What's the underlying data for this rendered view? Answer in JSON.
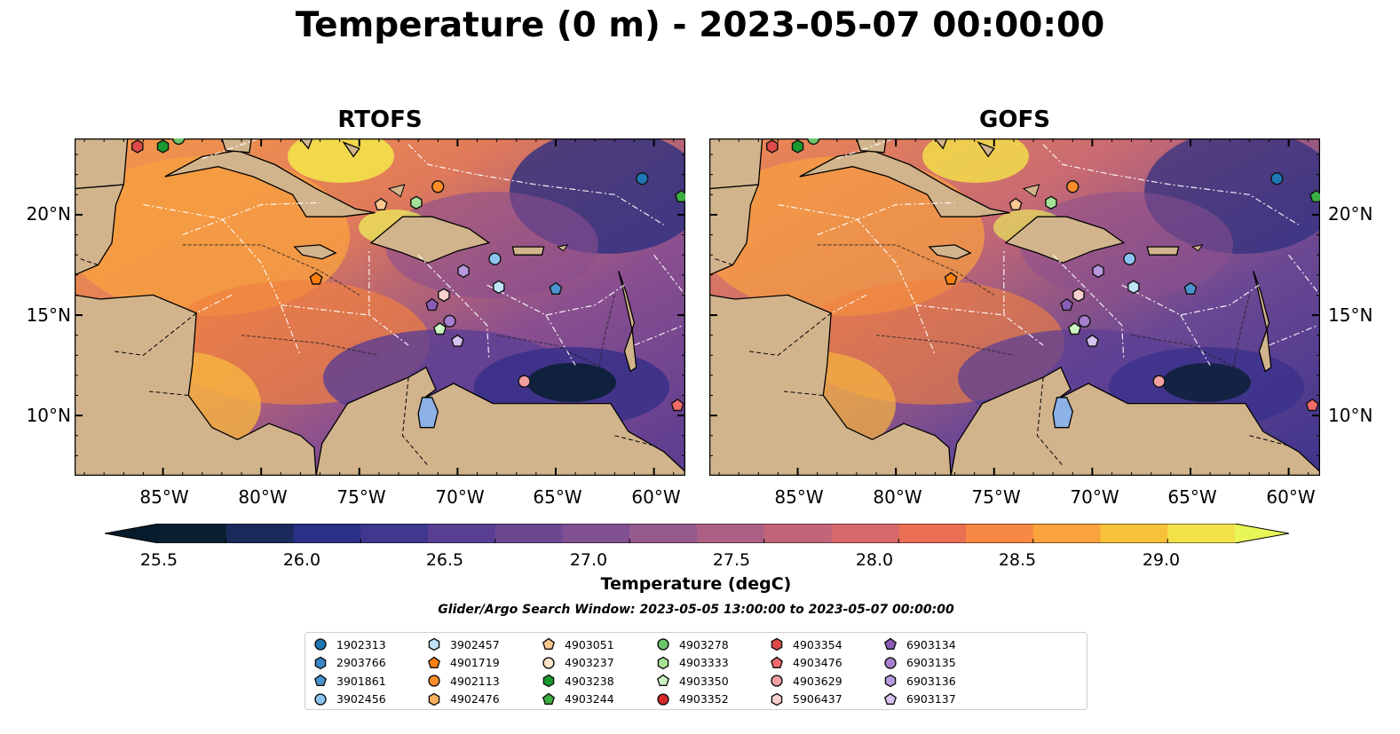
{
  "suptitle": "Temperature (0 m) - 2023-05-07 00:00:00",
  "panels": [
    {
      "id": "rtofs",
      "title": "RTOFS"
    },
    {
      "id": "gofs",
      "title": "GOFS"
    }
  ],
  "lon_ticks": [
    "85°W",
    "80°W",
    "75°W",
    "70°W",
    "65°W",
    "60°W"
  ],
  "lat_ticks": [
    "20°N",
    "15°N",
    "10°N"
  ],
  "extent": {
    "lon_min": -89.5,
    "lon_max": -58.4,
    "lat_min": 7.0,
    "lat_max": 23.8
  },
  "colorbar": {
    "label": "Temperature (degC)",
    "min": 25.25,
    "max": 29.25,
    "step": 0.25,
    "ticks": [
      "25.5",
      "26.0",
      "26.5",
      "27.0",
      "27.5",
      "28.0",
      "28.5",
      "29.0"
    ],
    "extend": "both",
    "colors": [
      "#0b1f33",
      "#1a2a5a",
      "#2b2f85",
      "#40378f",
      "#583f93",
      "#6c4893",
      "#815092",
      "#965a8f",
      "#ac6085",
      "#c2657a",
      "#d7696c",
      "#ea6f55",
      "#f78845",
      "#faa23b",
      "#f8c13a",
      "#f3e14a"
    ],
    "under_color": "#061b2b",
    "over_color": "#e8f556"
  },
  "colors": {
    "land": "#d2b48c",
    "lake": "#8cb2e6",
    "extreme": "#e8f556"
  },
  "search_window": "Glider/Argo Search Window: 2023-05-05 13:00:00 to 2023-05-07 00:00:00",
  "floats": [
    {
      "id": "1902313",
      "marker": "circle",
      "color": "#1f77b4",
      "lon": -60.6,
      "lat": 21.8
    },
    {
      "id": "2903766",
      "marker": "hexagon",
      "color": "#3a86c8",
      "lon": null,
      "lat": null
    },
    {
      "id": "3901861",
      "marker": "pentagon",
      "color": "#4a95d0",
      "lon": -65.0,
      "lat": 16.3
    },
    {
      "id": "3902456",
      "marker": "circle",
      "color": "#8cc4f0",
      "lon": -68.1,
      "lat": 17.8
    },
    {
      "id": "3902457",
      "marker": "hexagon",
      "color": "#bfe3f7",
      "lon": -67.9,
      "lat": 16.4
    },
    {
      "id": "4901719",
      "marker": "pentagon",
      "color": "#ff7f0e",
      "lon": -77.2,
      "lat": 16.8
    },
    {
      "id": "4902113",
      "marker": "circle",
      "color": "#ff8c2a",
      "lon": -71.0,
      "lat": 21.4
    },
    {
      "id": "4902476",
      "marker": "hexagon",
      "color": "#ffb060",
      "lon": null,
      "lat": null
    },
    {
      "id": "4903051",
      "marker": "pentagon",
      "color": "#ffc890",
      "lon": -73.9,
      "lat": 20.5
    },
    {
      "id": "4903237",
      "marker": "circle",
      "color": "#ffe4c8",
      "lon": null,
      "lat": null
    },
    {
      "id": "4903238",
      "marker": "hexagon",
      "color": "#1a9a30",
      "lon": -85.0,
      "lat": 23.4
    },
    {
      "id": "4903244",
      "marker": "pentagon",
      "color": "#3cb043",
      "lon": -58.6,
      "lat": 20.9
    },
    {
      "id": "4903278",
      "marker": "circle",
      "color": "#6cc56a",
      "lon": -84.2,
      "lat": 23.8
    },
    {
      "id": "4903333",
      "marker": "hexagon",
      "color": "#a6e39a",
      "lon": -72.1,
      "lat": 20.6
    },
    {
      "id": "4903350",
      "marker": "pentagon",
      "color": "#cdf5c4",
      "lon": -70.9,
      "lat": 14.3
    },
    {
      "id": "4903352",
      "marker": "circle",
      "color": "#d62728",
      "lon": null,
      "lat": null
    },
    {
      "id": "4903354",
      "marker": "hexagon",
      "color": "#e04a4a",
      "lon": -86.3,
      "lat": 23.4
    },
    {
      "id": "4903476",
      "marker": "pentagon",
      "color": "#f26a6a",
      "lon": -58.8,
      "lat": 10.5
    },
    {
      "id": "4903629",
      "marker": "circle",
      "color": "#f2a0a0",
      "lon": -66.6,
      "lat": 11.7
    },
    {
      "id": "5906437",
      "marker": "hexagon",
      "color": "#fbd0d0",
      "lon": -70.7,
      "lat": 16.0
    },
    {
      "id": "6903134",
      "marker": "pentagon",
      "color": "#8a5cb8",
      "lon": -71.3,
      "lat": 15.5
    },
    {
      "id": "6903135",
      "marker": "circle",
      "color": "#a77fd0",
      "lon": -70.4,
      "lat": 14.7
    },
    {
      "id": "6903136",
      "marker": "hexagon",
      "color": "#b898e0",
      "lon": -69.7,
      "lat": 17.2
    },
    {
      "id": "6903137",
      "marker": "pentagon",
      "color": "#d7c2f0",
      "lon": -70.0,
      "lat": 13.7
    }
  ]
}
